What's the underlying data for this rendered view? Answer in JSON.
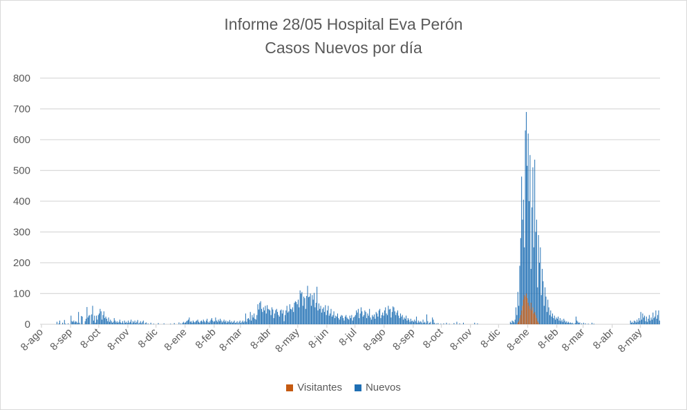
{
  "chart_data": {
    "type": "bar",
    "title": "Informe 28/05 Hospital Eva Perón",
    "subtitle": "Casos Nuevos por día",
    "xlabel": "",
    "ylabel": "",
    "ylim": [
      0,
      800
    ],
    "y_ticks": [
      "0",
      "100",
      "200",
      "300",
      "400",
      "500",
      "600",
      "700",
      "800"
    ],
    "grid": true,
    "legend_position": "bottom",
    "x_start": "2020-08-08",
    "x_ticks": [
      "8-ago",
      "8-sep",
      "8-oct",
      "8-nov",
      "8-dic",
      "8-ene",
      "8-feb",
      "8-mar",
      "8-abr",
      "8-may",
      "8-jun",
      "8-jul",
      "8-ago",
      "8-sep",
      "8-oct",
      "8-nov",
      "8-dic",
      "8-ene",
      "8-feb",
      "8-mar",
      "8-abr",
      "8-may"
    ],
    "series": [
      {
        "name": "Visitantes",
        "color": "#C55A11",
        "start": "2021-12-28",
        "values": [
          5,
          10,
          20,
          30,
          45,
          60,
          80,
          95,
          90,
          100,
          85,
          70,
          60,
          50,
          70,
          45,
          55,
          35,
          40,
          30,
          20,
          10,
          5
        ]
      },
      {
        "name": "Nuevos",
        "color": "#1F6FB4",
        "start": "2020-08-08",
        "values": [
          0,
          0,
          0,
          0,
          0,
          0,
          0,
          0,
          0,
          0,
          0,
          0,
          0,
          0,
          0,
          0,
          8,
          0,
          3,
          12,
          0,
          0,
          5,
          0,
          14,
          2,
          0,
          0,
          3,
          0,
          0,
          28,
          10,
          8,
          12,
          6,
          10,
          8,
          4,
          40,
          5,
          0,
          27,
          25,
          0,
          0,
          10,
          18,
          56,
          22,
          28,
          30,
          0,
          32,
          60,
          12,
          28,
          5,
          28,
          15,
          30,
          35,
          50,
          42,
          15,
          30,
          42,
          20,
          25,
          18,
          10,
          22,
          8,
          15,
          10,
          5,
          8,
          20,
          12,
          6,
          10,
          5,
          8,
          15,
          6,
          4,
          10,
          3,
          12,
          5,
          8,
          4,
          12,
          5,
          8,
          15,
          3,
          10,
          6,
          12,
          4,
          8,
          14,
          2,
          5,
          10,
          3,
          8,
          12,
          0,
          4,
          6,
          0,
          3,
          0,
          0,
          5,
          0,
          0,
          2,
          0,
          0,
          0,
          0,
          4,
          0,
          0,
          0,
          0,
          0,
          3,
          0,
          0,
          0,
          0,
          0,
          0,
          2,
          0,
          0,
          0,
          4,
          0,
          0,
          0,
          0,
          6,
          0,
          3,
          0,
          5,
          8,
          4,
          6,
          10,
          12,
          15,
          22,
          8,
          10,
          5,
          12,
          8,
          6,
          10,
          12,
          15,
          8,
          5,
          10,
          12,
          8,
          15,
          10,
          6,
          12,
          18,
          8,
          5,
          10,
          15,
          20,
          12,
          8,
          10,
          22,
          12,
          8,
          15,
          10,
          18,
          12,
          6,
          10,
          15,
          8,
          12,
          5,
          10,
          8,
          14,
          6,
          10,
          5,
          8,
          12,
          4,
          6,
          10,
          3,
          8,
          12,
          4,
          8,
          12,
          6,
          10,
          35,
          8,
          18,
          20,
          15,
          40,
          12,
          30,
          22,
          35,
          18,
          15,
          30,
          65,
          48,
          70,
          75,
          50,
          40,
          55,
          45,
          60,
          35,
          62,
          50,
          48,
          45,
          30,
          55,
          48,
          20,
          35,
          46,
          50,
          40,
          30,
          25,
          45,
          48,
          35,
          46,
          10,
          30,
          45,
          60,
          38,
          42,
          65,
          50,
          48,
          55,
          40,
          70,
          75,
          72,
          65,
          80,
          55,
          110,
          100,
          105,
          60,
          90,
          85,
          50,
          92,
          125,
          88,
          90,
          100,
          60,
          95,
          80,
          102,
          55,
          70,
          122,
          45,
          68,
          50,
          60,
          38,
          50,
          55,
          40,
          62,
          30,
          45,
          60,
          28,
          35,
          50,
          25,
          30,
          42,
          20,
          28,
          25,
          35,
          20,
          15,
          25,
          30,
          28,
          20,
          12,
          25,
          30,
          22,
          18,
          15,
          28,
          20,
          30,
          12,
          22,
          25,
          30,
          45,
          38,
          50,
          20,
          35,
          55,
          42,
          25,
          30,
          45,
          40,
          20,
          35,
          28,
          50,
          22,
          15,
          30,
          25,
          32,
          18,
          40,
          35,
          25,
          45,
          50,
          20,
          30,
          38,
          28,
          45,
          55,
          35,
          30,
          60,
          48,
          50,
          22,
          40,
          58,
          55,
          42,
          30,
          38,
          45,
          28,
          20,
          35,
          25,
          30,
          15,
          22,
          18,
          28,
          12,
          20,
          15,
          8,
          18,
          10,
          12,
          8,
          15,
          10,
          25,
          5,
          12,
          6,
          10,
          8,
          3,
          15,
          5,
          8,
          3,
          32,
          10,
          2,
          5,
          8,
          0,
          22,
          15,
          5,
          0,
          3,
          0,
          4,
          0,
          0,
          2,
          0,
          0,
          3,
          0,
          0,
          5,
          0,
          0,
          2,
          0,
          0,
          0,
          0,
          4,
          0,
          0,
          8,
          0,
          0,
          3,
          0,
          0,
          0,
          5,
          0,
          0,
          0,
          0,
          0,
          0,
          0,
          0,
          0,
          0,
          0,
          5,
          0,
          0,
          3,
          0,
          0,
          0,
          0,
          0,
          0,
          0,
          0,
          0,
          0,
          0,
          0,
          0,
          0,
          0,
          0,
          0,
          0,
          0,
          0,
          0,
          0,
          0,
          0,
          0,
          0,
          0,
          0,
          0,
          0,
          0,
          0,
          0,
          0,
          8,
          4,
          12,
          10,
          6,
          15,
          55,
          30,
          105,
          60,
          190,
          280,
          480,
          340,
          405,
          250,
          630,
          690,
          515,
          620,
          400,
          550,
          180,
          380,
          510,
          250,
          535,
          300,
          340,
          120,
          290,
          200,
          250,
          95,
          180,
          140,
          60,
          120,
          90,
          40,
          80,
          55,
          30,
          45,
          25,
          35,
          20,
          28,
          15,
          22,
          18,
          25,
          12,
          20,
          10,
          15,
          8,
          18,
          12,
          6,
          10,
          5,
          8,
          4,
          6,
          3,
          5,
          2,
          0,
          4,
          25,
          12,
          8,
          4,
          6,
          0,
          3,
          0,
          5,
          0,
          3,
          0,
          0,
          2,
          0,
          0,
          0,
          5,
          0,
          2,
          0,
          0,
          0,
          0,
          0,
          0,
          0,
          0,
          0,
          0,
          0,
          0,
          0,
          0,
          0,
          0,
          0,
          0,
          0,
          0,
          0,
          0,
          0,
          0,
          0,
          0,
          0,
          0,
          0,
          0,
          0,
          0,
          0,
          0,
          0,
          0,
          0,
          0,
          12,
          5,
          8,
          4,
          12,
          10,
          6,
          15,
          8,
          20,
          12,
          40,
          15,
          35,
          22,
          28,
          10,
          25,
          8,
          18,
          30,
          12,
          22,
          15,
          38,
          20,
          25,
          45,
          18,
          30,
          45,
          12
        ]
      }
    ]
  }
}
